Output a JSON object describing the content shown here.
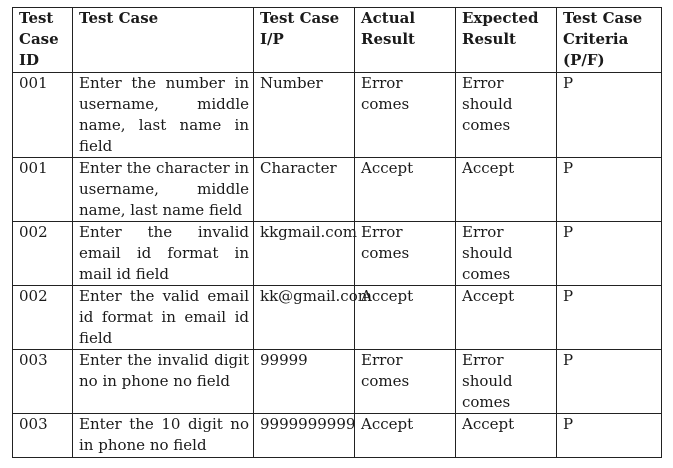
{
  "headers": [
    "Test Case ID",
    "Test Case",
    "Test Case I/P",
    "Actual Result",
    "Expected Result",
    "Test Case Criteria (P/F)"
  ],
  "rows": [
    {
      "id": "001",
      "test_case": "Enter the number in username, middle name, last name in field",
      "input": "Number",
      "actual": "Error comes",
      "expected": "Error should comes",
      "criteria": "P"
    },
    {
      "id": "001",
      "test_case": "Enter the character in username, middle name, last name field",
      "input": "Character",
      "actual": "Accept",
      "expected": "Accept",
      "criteria": "P"
    },
    {
      "id": "002",
      "test_case": "Enter the invalid email id format in mail id field",
      "input": "kkgmail.com",
      "actual": "Error comes",
      "expected": "Error should comes",
      "criteria": "P"
    },
    {
      "id": "002",
      "test_case": "Enter the valid email id format in email id field",
      "input": "kk@gmail.com",
      "actual": "Accept",
      "expected": "Accept",
      "criteria": "P"
    },
    {
      "id": "003",
      "test_case": "Enter the invalid digit no in phone no field",
      "input": "99999",
      "actual": "Error comes",
      "expected": "Error should comes",
      "criteria": "P"
    },
    {
      "id": "003",
      "test_case": "Enter the 10 digit no in phone no field",
      "input": "9999999999",
      "actual": "Accept",
      "expected": "Accept",
      "criteria": "P"
    }
  ]
}
